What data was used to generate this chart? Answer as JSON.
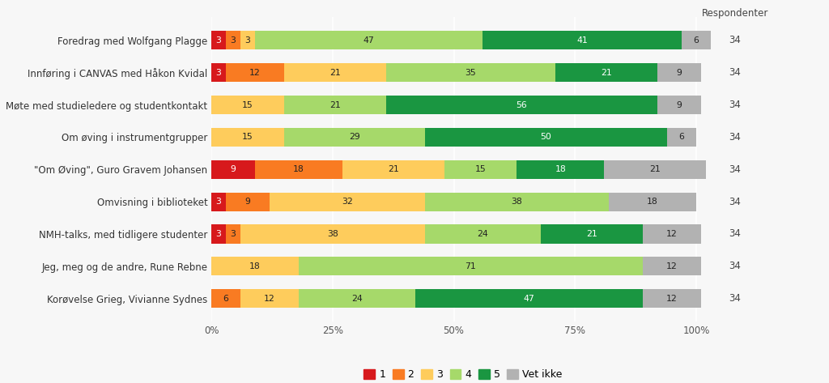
{
  "categories": [
    "Foredrag med Wolfgang Plagge",
    "Innføring i CANVAS med Håkon Kvidal",
    "Møte med studieledere og studentkontakt",
    "Om øving i instrumentgrupper",
    "\"Om Øving\", Guro Gravem Johansen",
    "Omvisning i biblioteket",
    "NMH-talks, med tidligere studenter",
    "Jeg, meg og de andre, Rune Rebne",
    "Korøvelse Grieg, Vivianne Sydnes"
  ],
  "data": {
    "1": [
      3,
      3,
      0,
      0,
      9,
      3,
      3,
      0,
      0
    ],
    "2": [
      3,
      12,
      0,
      0,
      18,
      9,
      3,
      0,
      6
    ],
    "3": [
      3,
      21,
      15,
      15,
      21,
      32,
      38,
      18,
      12
    ],
    "4": [
      47,
      35,
      21,
      29,
      15,
      38,
      24,
      71,
      24
    ],
    "5": [
      41,
      21,
      56,
      50,
      18,
      0,
      21,
      0,
      47
    ],
    "vet_ikke": [
      6,
      9,
      9,
      6,
      21,
      18,
      12,
      12,
      12
    ]
  },
  "colors": {
    "1": "#d7191c",
    "2": "#f97b22",
    "3": "#fecc5c",
    "4": "#a6d96a",
    "5": "#1a9641",
    "vet_ikke": "#b2b2b2"
  },
  "legend_labels": [
    "1",
    "2",
    "3",
    "4",
    "5",
    "Vet ikke"
  ],
  "respondenter": 34,
  "respondenter_label": "Respondenter",
  "bg_color": "#f7f7f7",
  "bar_height": 0.58,
  "text_color_white_keys": [
    "1",
    "5"
  ],
  "figsize": [
    10.24,
    4.73
  ],
  "dpi": 100
}
